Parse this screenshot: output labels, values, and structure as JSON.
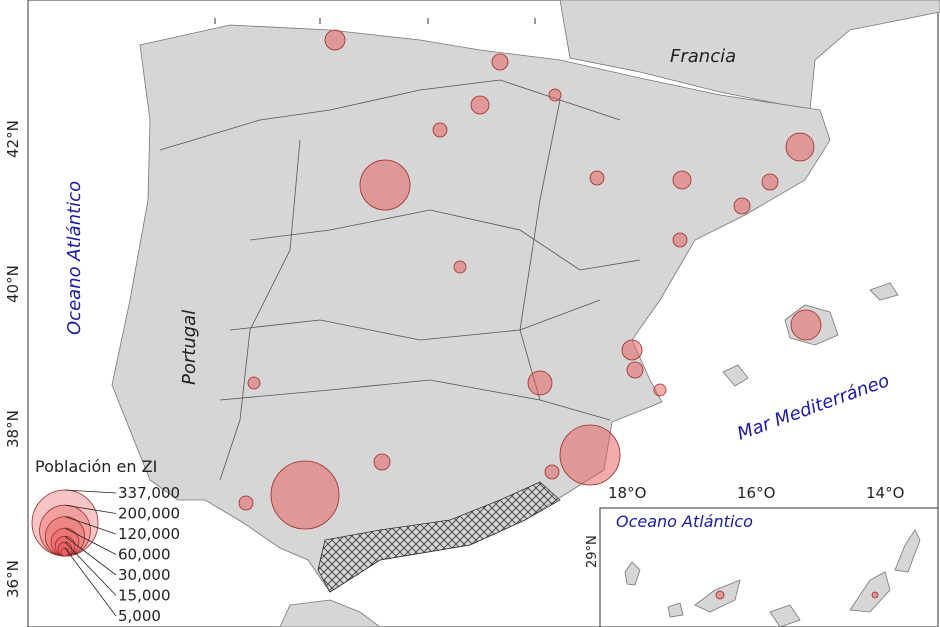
{
  "map": {
    "labels": {
      "france": "Francia",
      "atlantic": "Oceano Atlántico",
      "portugal": "Portugal",
      "mediterranean": "Mar Mediterráneo",
      "inset_ocean": "Oceano Atlántico"
    },
    "lat_ticks": [
      "42°N",
      "40°N",
      "38°N",
      "36°N"
    ],
    "lon_ticks": [
      "18°O",
      "16°O",
      "14°O"
    ],
    "inset_lat_ticks": [
      "29°N"
    ]
  },
  "legend": {
    "title": "Población en ZI",
    "entries": [
      {
        "value": 337000,
        "label": "337,000"
      },
      {
        "value": 200000,
        "label": "200,000"
      },
      {
        "value": 120000,
        "label": "120,000"
      },
      {
        "value": 60000,
        "label": "60,000"
      },
      {
        "value": 30000,
        "label": "30,000"
      },
      {
        "value": 15000,
        "label": "15,000"
      },
      {
        "value": 5000,
        "label": "5,000"
      }
    ]
  }
}
